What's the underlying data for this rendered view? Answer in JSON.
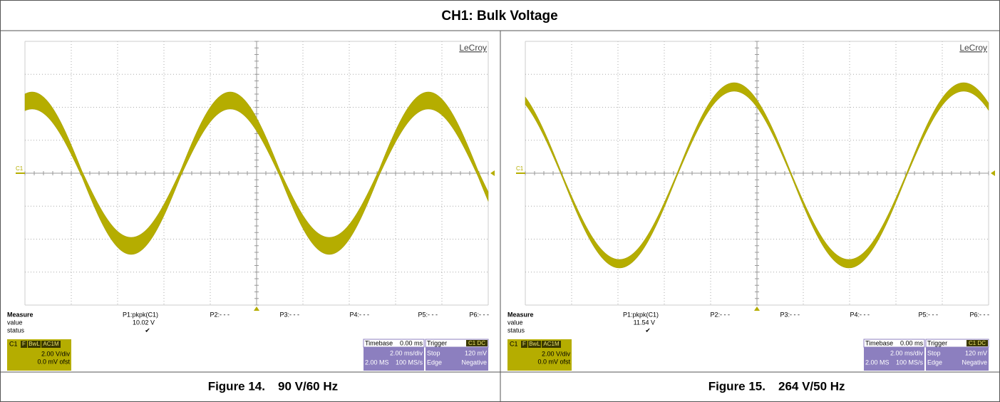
{
  "title": "CH1: Bulk Voltage",
  "panels": [
    {
      "brand": "LeCroy",
      "channel_marker": "C1",
      "measure": {
        "headers": [
          "Measure",
          "P1:pkpk(C1)",
          "P2:- - -",
          "P3:- - -",
          "P4:- - -",
          "P5:- - -",
          "P6:- - -"
        ],
        "value_label": "value",
        "value": "10.02 V",
        "status_label": "status",
        "status": "✔"
      },
      "channel_box": {
        "label": "C1",
        "tags": [
          "F",
          "BwL",
          "AC1M"
        ],
        "lines": [
          "2.00 V/div",
          "0.0 mV ofst"
        ]
      },
      "timebase": {
        "label": "Timebase",
        "delay": "0.00 ms",
        "scale": "2.00 ms/div",
        "samples": "2.00 MS",
        "rate": "100 MS/s"
      },
      "trigger": {
        "label": "Trigger",
        "source": "C1 DC",
        "mode": "Stop",
        "level": "120 mV",
        "type": "Edge",
        "slope": "Negative"
      },
      "caption_number": "Figure 14.",
      "caption_text": "90 V/60 Hz"
    },
    {
      "brand": "LeCroy",
      "channel_marker": "C1",
      "measure": {
        "headers": [
          "Measure",
          "P1:pkpk(C1)",
          "P2:- - -",
          "P3:- - -",
          "P4:- - -",
          "P5:- - -",
          "P6:- - -"
        ],
        "value_label": "value",
        "value": "11.54 V",
        "status_label": "status",
        "status": "✔"
      },
      "channel_box": {
        "label": "C1",
        "tags": [
          "F",
          "BwL",
          "AC1M"
        ],
        "lines": [
          "2.00 V/div",
          "0.0 mV ofst"
        ]
      },
      "timebase": {
        "label": "Timebase",
        "delay": "0.00 ms",
        "scale": "2.00 ms/div",
        "samples": "2.00 MS",
        "rate": "100 MS/s"
      },
      "trigger": {
        "label": "Trigger",
        "source": "C1 DC",
        "mode": "Stop",
        "level": "120 mV",
        "type": "Edge",
        "slope": "Negative"
      },
      "caption_number": "Figure 15.",
      "caption_text": "264 V/50 Hz"
    }
  ]
}
